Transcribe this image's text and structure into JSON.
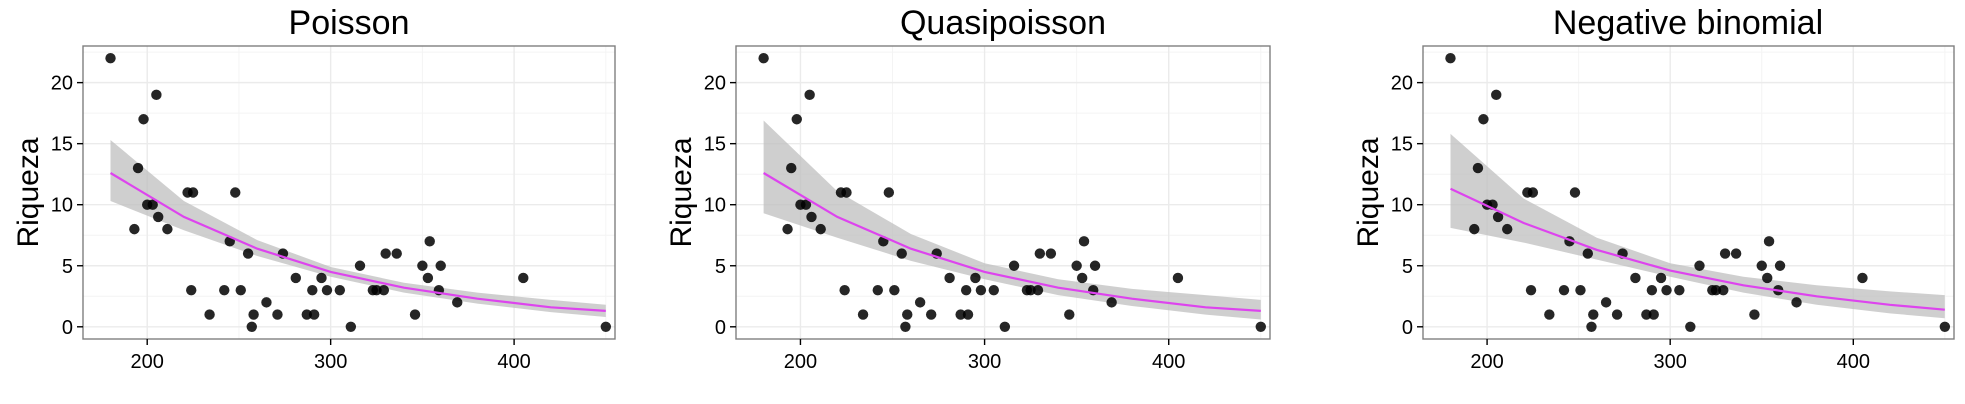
{
  "figure": {
    "colors": {
      "points": "#000000",
      "fit_line": "#dd44ee",
      "ribbon": "#bfbfbf",
      "panel_border": "#7f7f7f",
      "grid": "#ebebeb"
    }
  },
  "chart_data": [
    {
      "type": "scatter",
      "title": "Poisson",
      "xlabel": "",
      "ylabel": "Riqueza",
      "xlim": [
        165,
        455
      ],
      "ylim": [
        -1,
        23
      ],
      "xticks": [
        200,
        300,
        400
      ],
      "yticks": [
        0,
        5,
        10,
        15,
        20
      ],
      "grid": true,
      "points": [
        [
          180,
          22
        ],
        [
          193,
          8
        ],
        [
          195,
          13
        ],
        [
          198,
          17
        ],
        [
          200,
          10
        ],
        [
          203,
          10
        ],
        [
          205,
          19
        ],
        [
          206,
          9
        ],
        [
          211,
          8
        ],
        [
          222,
          11
        ],
        [
          224,
          3
        ],
        [
          225,
          11
        ],
        [
          234,
          1
        ],
        [
          242,
          3
        ],
        [
          245,
          7
        ],
        [
          248,
          11
        ],
        [
          251,
          3
        ],
        [
          255,
          6
        ],
        [
          257,
          0
        ],
        [
          258,
          1
        ],
        [
          265,
          2
        ],
        [
          271,
          1
        ],
        [
          274,
          6
        ],
        [
          281,
          4
        ],
        [
          287,
          1
        ],
        [
          290,
          3
        ],
        [
          291,
          1
        ],
        [
          295,
          4
        ],
        [
          298,
          3
        ],
        [
          305,
          3
        ],
        [
          311,
          0
        ],
        [
          316,
          5
        ],
        [
          323,
          3
        ],
        [
          325,
          3
        ],
        [
          329,
          3
        ],
        [
          330,
          6
        ],
        [
          336,
          6
        ],
        [
          346,
          1
        ],
        [
          350,
          5
        ],
        [
          353,
          4
        ],
        [
          354,
          7
        ],
        [
          359,
          3
        ],
        [
          360,
          5
        ],
        [
          369,
          2
        ],
        [
          405,
          4
        ],
        [
          450,
          0
        ]
      ],
      "fit": {
        "x": [
          180,
          220,
          260,
          300,
          340,
          380,
          420,
          450
        ],
        "y": [
          12.6,
          9.0,
          6.4,
          4.5,
          3.2,
          2.3,
          1.6,
          1.3
        ]
      },
      "ci_lower": [
        10.3,
        7.9,
        5.8,
        4.1,
        2.8,
        1.9,
        1.2,
        0.8
      ],
      "ci_upper": [
        15.3,
        10.3,
        7.1,
        4.9,
        3.6,
        2.8,
        2.2,
        1.8
      ]
    },
    {
      "type": "scatter",
      "title": "Quasipoisson",
      "xlabel": "",
      "ylabel": "Riqueza",
      "xlim": [
        165,
        455
      ],
      "ylim": [
        -1,
        23
      ],
      "xticks": [
        200,
        300,
        400
      ],
      "yticks": [
        0,
        5,
        10,
        15,
        20
      ],
      "grid": true,
      "points": [
        [
          180,
          22
        ],
        [
          193,
          8
        ],
        [
          195,
          13
        ],
        [
          198,
          17
        ],
        [
          200,
          10
        ],
        [
          203,
          10
        ],
        [
          205,
          19
        ],
        [
          206,
          9
        ],
        [
          211,
          8
        ],
        [
          222,
          11
        ],
        [
          224,
          3
        ],
        [
          225,
          11
        ],
        [
          234,
          1
        ],
        [
          242,
          3
        ],
        [
          245,
          7
        ],
        [
          248,
          11
        ],
        [
          251,
          3
        ],
        [
          255,
          6
        ],
        [
          257,
          0
        ],
        [
          258,
          1
        ],
        [
          265,
          2
        ],
        [
          271,
          1
        ],
        [
          274,
          6
        ],
        [
          281,
          4
        ],
        [
          287,
          1
        ],
        [
          290,
          3
        ],
        [
          291,
          1
        ],
        [
          295,
          4
        ],
        [
          298,
          3
        ],
        [
          305,
          3
        ],
        [
          311,
          0
        ],
        [
          316,
          5
        ],
        [
          323,
          3
        ],
        [
          325,
          3
        ],
        [
          329,
          3
        ],
        [
          330,
          6
        ],
        [
          336,
          6
        ],
        [
          346,
          1
        ],
        [
          350,
          5
        ],
        [
          353,
          4
        ],
        [
          354,
          7
        ],
        [
          359,
          3
        ],
        [
          360,
          5
        ],
        [
          369,
          2
        ],
        [
          405,
          4
        ],
        [
          450,
          0
        ]
      ],
      "fit": {
        "x": [
          180,
          220,
          260,
          300,
          340,
          380,
          420,
          450
        ],
        "y": [
          12.6,
          9.0,
          6.4,
          4.5,
          3.2,
          2.3,
          1.6,
          1.3
        ]
      },
      "ci_lower": [
        9.3,
        7.3,
        5.4,
        3.9,
        2.6,
        1.7,
        1.0,
        0.6
      ],
      "ci_upper": [
        16.9,
        11.1,
        7.6,
        5.2,
        3.9,
        3.1,
        2.6,
        2.2
      ]
    },
    {
      "type": "scatter",
      "title": "Negative binomial",
      "xlabel": "",
      "ylabel": "Riqueza",
      "xlim": [
        165,
        455
      ],
      "ylim": [
        -1,
        23
      ],
      "xticks": [
        200,
        300,
        400
      ],
      "yticks": [
        0,
        5,
        10,
        15,
        20
      ],
      "grid": true,
      "points": [
        [
          180,
          22
        ],
        [
          193,
          8
        ],
        [
          195,
          13
        ],
        [
          198,
          17
        ],
        [
          200,
          10
        ],
        [
          203,
          10
        ],
        [
          205,
          19
        ],
        [
          206,
          9
        ],
        [
          211,
          8
        ],
        [
          222,
          11
        ],
        [
          224,
          3
        ],
        [
          225,
          11
        ],
        [
          234,
          1
        ],
        [
          242,
          3
        ],
        [
          245,
          7
        ],
        [
          248,
          11
        ],
        [
          251,
          3
        ],
        [
          255,
          6
        ],
        [
          257,
          0
        ],
        [
          258,
          1
        ],
        [
          265,
          2
        ],
        [
          271,
          1
        ],
        [
          274,
          6
        ],
        [
          281,
          4
        ],
        [
          287,
          1
        ],
        [
          290,
          3
        ],
        [
          291,
          1
        ],
        [
          295,
          4
        ],
        [
          298,
          3
        ],
        [
          305,
          3
        ],
        [
          311,
          0
        ],
        [
          316,
          5
        ],
        [
          323,
          3
        ],
        [
          325,
          3
        ],
        [
          329,
          3
        ],
        [
          330,
          6
        ],
        [
          336,
          6
        ],
        [
          346,
          1
        ],
        [
          350,
          5
        ],
        [
          353,
          4
        ],
        [
          354,
          7
        ],
        [
          359,
          3
        ],
        [
          360,
          5
        ],
        [
          369,
          2
        ],
        [
          405,
          4
        ],
        [
          450,
          0
        ]
      ],
      "fit": {
        "x": [
          180,
          220,
          260,
          300,
          340,
          380,
          420,
          450
        ],
        "y": [
          11.3,
          8.5,
          6.3,
          4.6,
          3.4,
          2.5,
          1.8,
          1.4
        ]
      },
      "ci_lower": [
        8.1,
        6.9,
        5.5,
        4.1,
        2.8,
        1.8,
        1.1,
        0.7
      ],
      "ci_upper": [
        15.8,
        10.5,
        7.3,
        5.2,
        4.1,
        3.4,
        2.9,
        2.6
      ]
    }
  ]
}
